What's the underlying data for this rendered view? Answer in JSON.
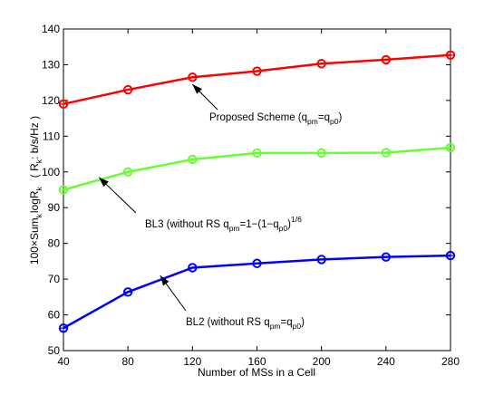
{
  "chart_data": {
    "type": "line",
    "x": [
      40,
      80,
      120,
      160,
      200,
      240,
      280
    ],
    "xticks": [
      "40",
      "80",
      "120",
      "160",
      "200",
      "240",
      "280"
    ],
    "yticks": [
      "50",
      "60",
      "70",
      "80",
      "90",
      "100",
      "110",
      "120",
      "130",
      "140"
    ],
    "xlim": [
      40,
      280
    ],
    "ylim": [
      50,
      140
    ],
    "grid": false,
    "xlabel": "Number of MSs in a Cell",
    "ylabel": {
      "main": "100×Sum",
      "sub1": "k",
      "log": "logR",
      "sub2": "k",
      "unit_open": "( R",
      "unit_sub": "k",
      "unit_rest": ": b/s/Hz )"
    },
    "series": [
      {
        "color": "#ff0000",
        "marker": "circle",
        "values": [
          119,
          123,
          126.5,
          128.2,
          130.3,
          131.4,
          132.7
        ]
      },
      {
        "color": "#66ff33",
        "marker": "circle",
        "values": [
          95,
          100,
          103.5,
          105.3,
          105.3,
          105.4,
          106.8
        ]
      },
      {
        "color": "#0000ff",
        "marker": "circle",
        "values": [
          56.3,
          66.4,
          73.2,
          74.4,
          75.5,
          76.2,
          76.6
        ]
      }
    ],
    "annotations": [
      {
        "base": "Proposed Scheme (q",
        "sub1": "pm",
        "mid": "=q",
        "sub2": "p0",
        "end": ")",
        "arrow_to": [
          120,
          124.5
        ]
      },
      {
        "base": "BL3 (without RS q",
        "sub1": "pm",
        "mid": "=1−(1−q",
        "sub2": "p0",
        "end": ")",
        "sup": "1/6",
        "end2": ")",
        "arrow_to": [
          62,
          98.5
        ]
      },
      {
        "base": "BL2 (without RS q",
        "sub1": "pm",
        "mid": "=q",
        "sub2": "p0",
        "end": ")",
        "arrow_to": [
          100,
          71
        ]
      }
    ]
  }
}
